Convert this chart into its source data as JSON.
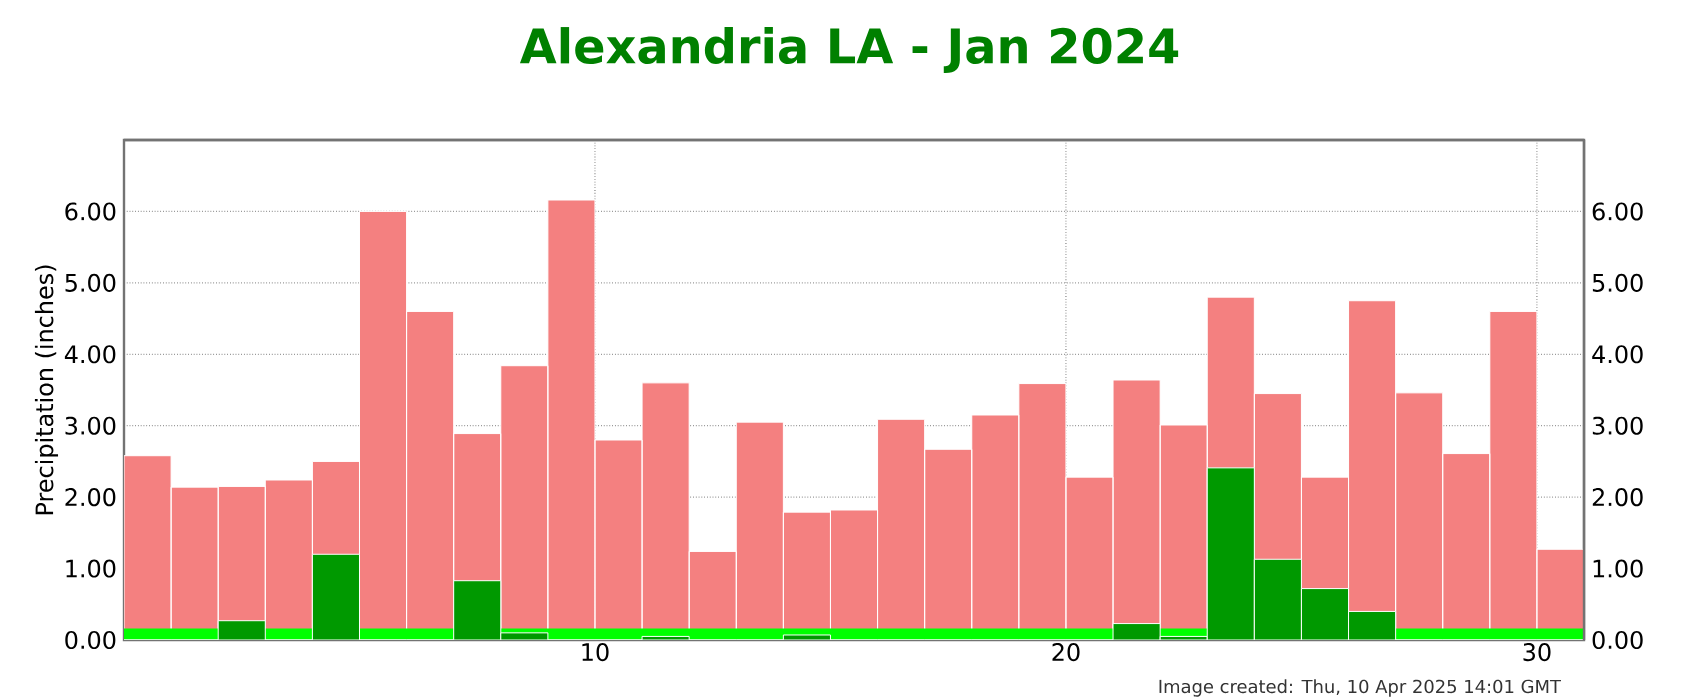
{
  "chart_data": {
    "type": "bar",
    "title": "Alexandria LA - Jan 2024",
    "ylabel": "Precipitation (inches)",
    "annotations": [
      "Image created: Thu, 10 Apr 2025 14:01 GMT"
    ],
    "x": [
      0.5,
      1.5,
      2.5,
      3.5,
      4.5,
      5.5,
      6.5,
      7.5,
      8.5,
      9.5,
      10.5,
      11.5,
      12.5,
      13.5,
      14.5,
      15.5,
      16.5,
      17.5,
      18.5,
      19.5,
      20.5,
      21.5,
      22.5,
      23.5,
      24.5,
      25.5,
      26.5,
      27.5,
      28.5,
      29.5,
      30.5
    ],
    "series": [
      {
        "color": "#f48080",
        "values": [
          2.58,
          2.14,
          2.15,
          2.24,
          2.5,
          6.0,
          4.6,
          2.89,
          3.84,
          6.16,
          2.8,
          3.6,
          1.24,
          3.05,
          1.79,
          1.82,
          3.09,
          2.67,
          3.15,
          3.59,
          2.28,
          3.64,
          3.01,
          4.8,
          3.45,
          2.28,
          4.75,
          3.46,
          2.61,
          4.6,
          1.27
        ]
      },
      {
        "color": "#009900",
        "values": [
          0,
          0,
          0.27,
          0,
          1.2,
          0,
          0,
          0.83,
          0.1,
          0,
          0,
          0.05,
          0,
          0,
          0.07,
          0,
          0,
          0,
          0,
          0,
          0,
          0.23,
          0.05,
          2.41,
          1.13,
          0.72,
          0.4,
          0,
          0,
          0,
          0
        ]
      }
    ],
    "bands": [
      {
        "axis": "y",
        "from": 0,
        "to": 0.16,
        "color": "#00ff00"
      }
    ],
    "xlim": [
      0,
      31
    ],
    "xticks": [
      10,
      20,
      30
    ],
    "ylim": [
      0,
      7
    ],
    "yticks": [
      {
        "value": 0,
        "label": "0.00"
      },
      {
        "value": 1,
        "label": "1.00"
      },
      {
        "value": 2,
        "label": "2.00"
      },
      {
        "value": 3,
        "label": "3.00"
      },
      {
        "value": 4,
        "label": "4.00"
      },
      {
        "value": 5,
        "label": "5.00"
      },
      {
        "value": 6,
        "label": "6.00"
      }
    ],
    "y2lim": [
      0,
      7
    ],
    "y2ticks": [
      {
        "value": 0,
        "label": "0.00"
      },
      {
        "value": 1,
        "label": "1.00"
      },
      {
        "value": 2,
        "label": "2.00"
      },
      {
        "value": 3,
        "label": "3.00"
      },
      {
        "value": 4,
        "label": "4.00"
      },
      {
        "value": 5,
        "label": "5.00"
      },
      {
        "value": 6,
        "label": "6.00"
      }
    ],
    "grid": true
  }
}
